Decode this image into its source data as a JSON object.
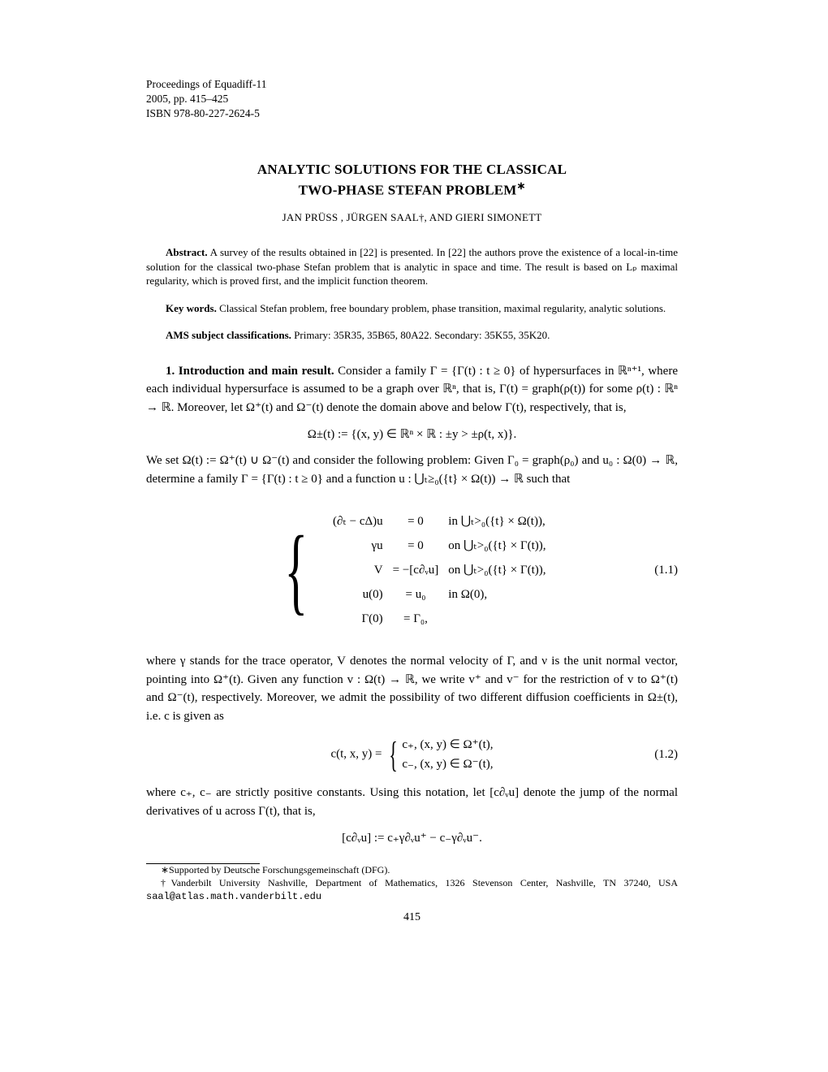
{
  "header": {
    "line1": "Proceedings of Equadiff-11",
    "line2": "2005, pp. 415–425",
    "line3": "ISBN 978-80-227-2624-5"
  },
  "title": {
    "line1": "ANALYTIC SOLUTIONS FOR THE CLASSICAL",
    "line2": "TWO-PHASE STEFAN PROBLEM",
    "sup": "∗"
  },
  "authors": "JAN PRÜSS , JÜRGEN SAAL†, AND GIERI SIMONETT",
  "abstract": {
    "label": "Abstract.",
    "text": " A survey of the results obtained in [22] is presented. In [22] the authors prove the existence of a local-in-time solution for the classical two-phase Stefan problem that is analytic in space and time. The result is based on Lₚ maximal regularity, which is proved first, and the implicit function theorem."
  },
  "keywords": {
    "label": "Key words.",
    "text": " Classical Stefan problem, free boundary problem, phase transition, maximal regularity, analytic solutions."
  },
  "ams": {
    "label": "AMS subject classifications.",
    "text": " Primary: 35R35, 35B65, 80A22. Secondary: 35K55, 35K20."
  },
  "section1": {
    "heading": "1. Introduction and main result.",
    "text1": " Consider a family Γ = {Γ(t) : t ≥ 0} of hypersurfaces in ℝⁿ⁺¹, where each individual hypersurface is assumed to be a graph over ℝⁿ, that is, Γ(t) = graph(ρ(t)) for some ρ(t) : ℝⁿ → ℝ. Moreover, let Ω⁺(t) and Ω⁻(t) denote the domain above and below Γ(t), respectively, that is,"
  },
  "eq_omega": "Ω±(t) := {(x, y) ∈ ℝⁿ × ℝ : ±y > ±ρ(t, x)}.",
  "para2": "We set Ω(t) := Ω⁺(t) ∪ Ω⁻(t) and consider the following problem: Given Γ₀ = graph(ρ₀) and u₀ : Ω(0) → ℝ, determine a family Γ = {Γ(t) : t ≥ 0} and a function u : ⋃ₜ≥₀({t} × Ω(t)) → ℝ such that",
  "system": {
    "rows": [
      {
        "l": "(∂ₜ − cΔ)u",
        "m": "= 0",
        "r": "in  ⋃ₜ>₀({t} × Ω(t)),"
      },
      {
        "l": "γu",
        "m": "= 0",
        "r": "on ⋃ₜ>₀({t} × Γ(t)),"
      },
      {
        "l": "V",
        "m": "= −[c∂ᵥu]",
        "r": "on ⋃ₜ>₀({t} × Γ(t)),"
      },
      {
        "l": "u(0)",
        "m": "= u₀",
        "r": "in Ω(0),"
      },
      {
        "l": "Γ(0)",
        "m": "= Γ₀,",
        "r": ""
      }
    ],
    "num": "(1.1)"
  },
  "para3": "where γ stands for the trace operator, V denotes the normal velocity of Γ, and ν is the unit normal vector, pointing into Ω⁺(t). Given any function v : Ω(t) → ℝ, we write v⁺ and v⁻ for the restriction of v to Ω⁺(t) and Ω⁻(t), respectively. Moreover, we admit the possibility of two different diffusion coefficients in Ω±(t), i.e. c is given as",
  "eq_c": {
    "lhs": "c(t, x, y) = ",
    "case1": "c₊,   (x, y) ∈ Ω⁺(t),",
    "case2": "c₋,   (x, y) ∈ Ω⁻(t),",
    "num": "(1.2)"
  },
  "para4": "where c₊, c₋ are strictly positive constants. Using this notation, let [c∂ᵥu] denote the jump of the normal derivatives of u across Γ(t), that is,",
  "eq_jump": "[c∂ᵥu] := c₊γ∂ᵥu⁺ − c₋γ∂ᵥu⁻.",
  "footnotes": {
    "f1": "∗Supported by Deutsche Forschungsgemeinschaft (DFG).",
    "f2a": "†Vanderbilt University Nashville, Department of Mathematics, 1326 Stevenson Center, Nashville, TN 37240, USA ",
    "f2b": "saal@atlas.math.vanderbilt.edu"
  },
  "pagenum": "415"
}
